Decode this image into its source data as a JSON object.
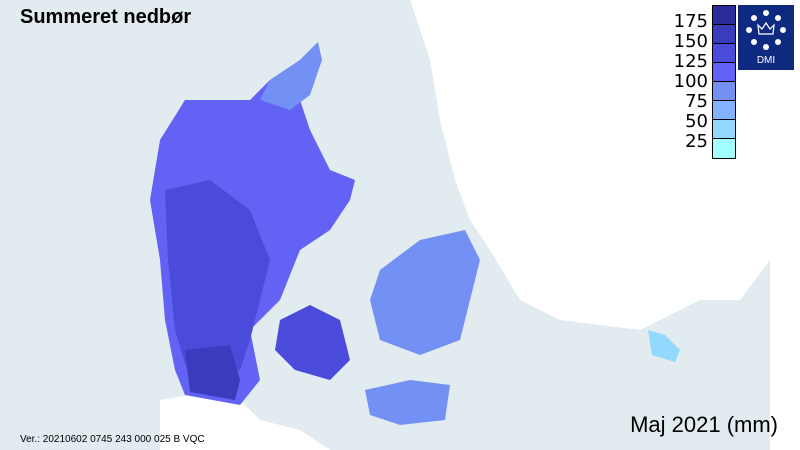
{
  "title": "Summeret nedbør",
  "period": "Maj 2021 (mm)",
  "version": "Ver.: 20210602 0745 243 000 025 B VQC",
  "legend": {
    "labels": [
      "175",
      "150",
      "125",
      "100",
      "75",
      "50",
      "25"
    ],
    "colors": [
      "#2b2b9c",
      "#3b3bbd",
      "#4b4bdb",
      "#6262f5",
      "#7390f5",
      "#82b2ff",
      "#92d8ff",
      "#a2ffff"
    ]
  },
  "logo": {
    "text": "DMI"
  },
  "colors": {
    "sea": "#e2ebf0",
    "foreign_land": "#ffffff"
  }
}
